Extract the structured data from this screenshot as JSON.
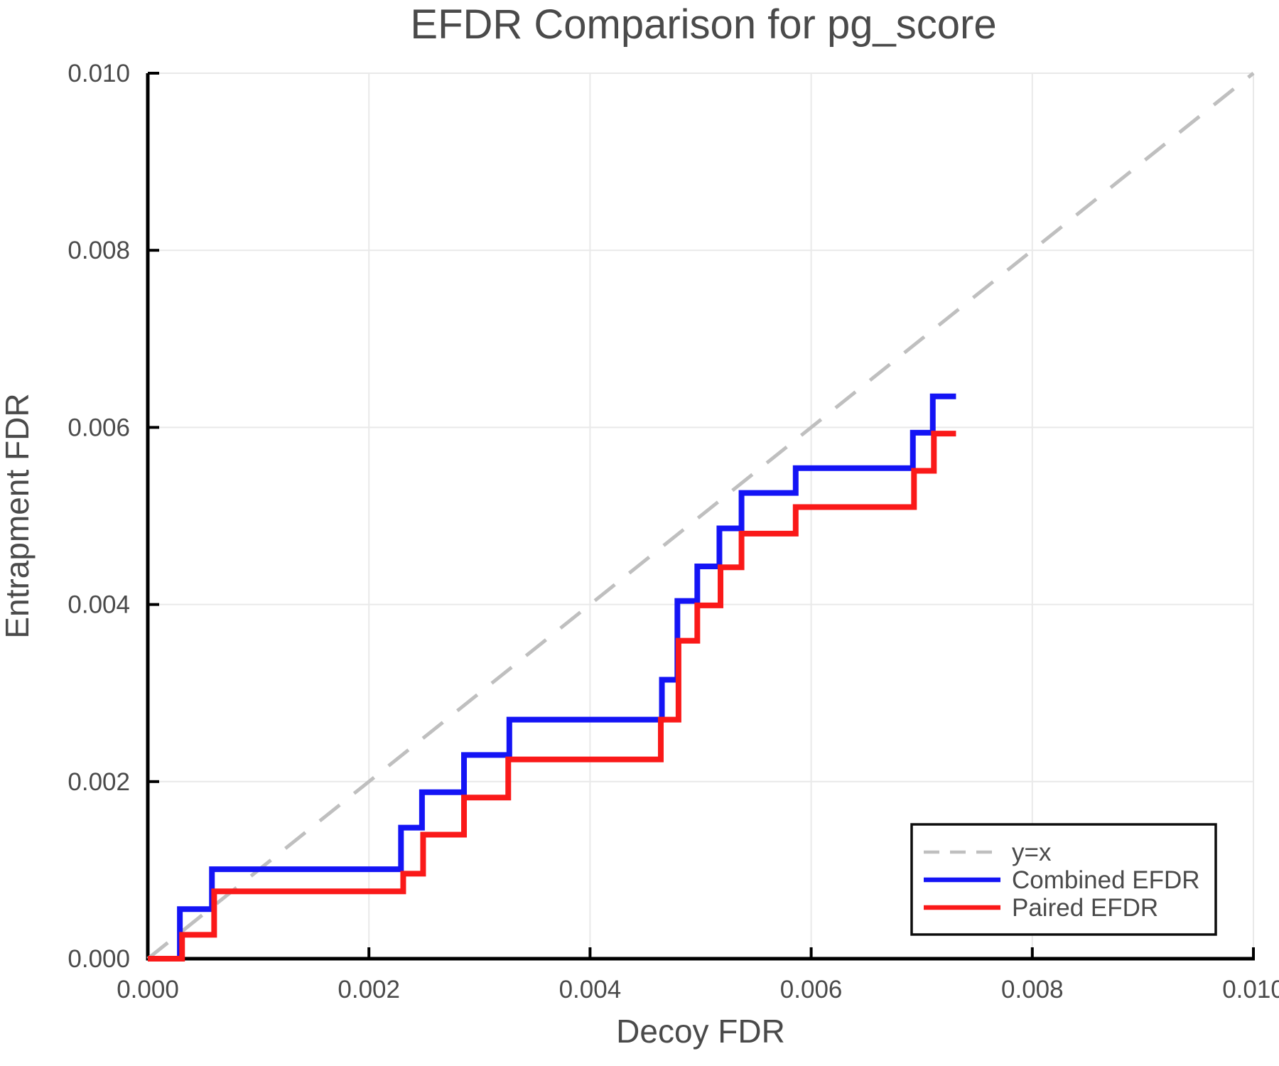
{
  "figure": {
    "title": "EFDR Comparison for pg_score",
    "xlabel": "Decoy FDR",
    "ylabel": "Entrapment FDR"
  },
  "chart_data": {
    "type": "line",
    "title": "EFDR Comparison for pg_score",
    "xlabel": "Decoy FDR",
    "ylabel": "Entrapment FDR",
    "xlim": [
      0.0,
      0.01
    ],
    "ylim": [
      0.0,
      0.01
    ],
    "grid": true,
    "xticks": {
      "values": [
        0.0,
        0.002,
        0.004,
        0.006,
        0.008,
        0.01
      ],
      "labels": [
        "0.000",
        "0.002",
        "0.004",
        "0.006",
        "0.008",
        "0.010"
      ]
    },
    "yticks": {
      "values": [
        0.0,
        0.002,
        0.004,
        0.006,
        0.008,
        0.01
      ],
      "labels": [
        "0.000",
        "0.002",
        "0.004",
        "0.006",
        "0.008",
        "0.010"
      ]
    },
    "legend": {
      "position": "bottom-right",
      "entries": [
        "y=x",
        "Combined EFDR",
        "Paired EFDR"
      ]
    },
    "series": [
      {
        "name": "y=x",
        "type": "line",
        "style": "dashed",
        "color": "#bfbfbf",
        "points": [
          [
            0.0,
            0.0
          ],
          [
            0.01,
            0.01
          ]
        ]
      },
      {
        "name": "Combined EFDR",
        "type": "step",
        "style": "solid",
        "color": "#1414f5",
        "points": [
          [
            0.0,
            0.0
          ],
          [
            0.00029,
            0.00056
          ],
          [
            0.00058,
            0.00101
          ],
          [
            0.00229,
            0.00148
          ],
          [
            0.00248,
            0.00188
          ],
          [
            0.00286,
            0.0023
          ],
          [
            0.00327,
            0.0027
          ],
          [
            0.00465,
            0.00315
          ],
          [
            0.00479,
            0.00404
          ],
          [
            0.00497,
            0.00443
          ],
          [
            0.00517,
            0.00486
          ],
          [
            0.00537,
            0.00526
          ],
          [
            0.00586,
            0.00554
          ],
          [
            0.00692,
            0.00594
          ],
          [
            0.0071,
            0.00635
          ],
          [
            0.00731,
            0.00635
          ]
        ]
      },
      {
        "name": "Paired EFDR",
        "type": "step",
        "style": "solid",
        "color": "#fa1919",
        "points": [
          [
            0.0,
            0.0
          ],
          [
            0.00031,
            0.00027
          ],
          [
            0.0006,
            0.00076
          ],
          [
            0.00231,
            0.00096
          ],
          [
            0.00249,
            0.0014
          ],
          [
            0.00286,
            0.00182
          ],
          [
            0.00326,
            0.00225
          ],
          [
            0.00464,
            0.0027
          ],
          [
            0.0048,
            0.00359
          ],
          [
            0.00497,
            0.00399
          ],
          [
            0.00518,
            0.00442
          ],
          [
            0.00537,
            0.0048
          ],
          [
            0.00586,
            0.0051
          ],
          [
            0.00693,
            0.00551
          ],
          [
            0.00711,
            0.00593
          ],
          [
            0.00731,
            0.00593
          ]
        ]
      }
    ],
    "style": {
      "grid_color": "#e9e9e9",
      "spine_color": "#000000",
      "text_color": "#4a4a4a",
      "legend_border_color": "#0d0d0d",
      "legend_background": "#ffffff"
    }
  }
}
